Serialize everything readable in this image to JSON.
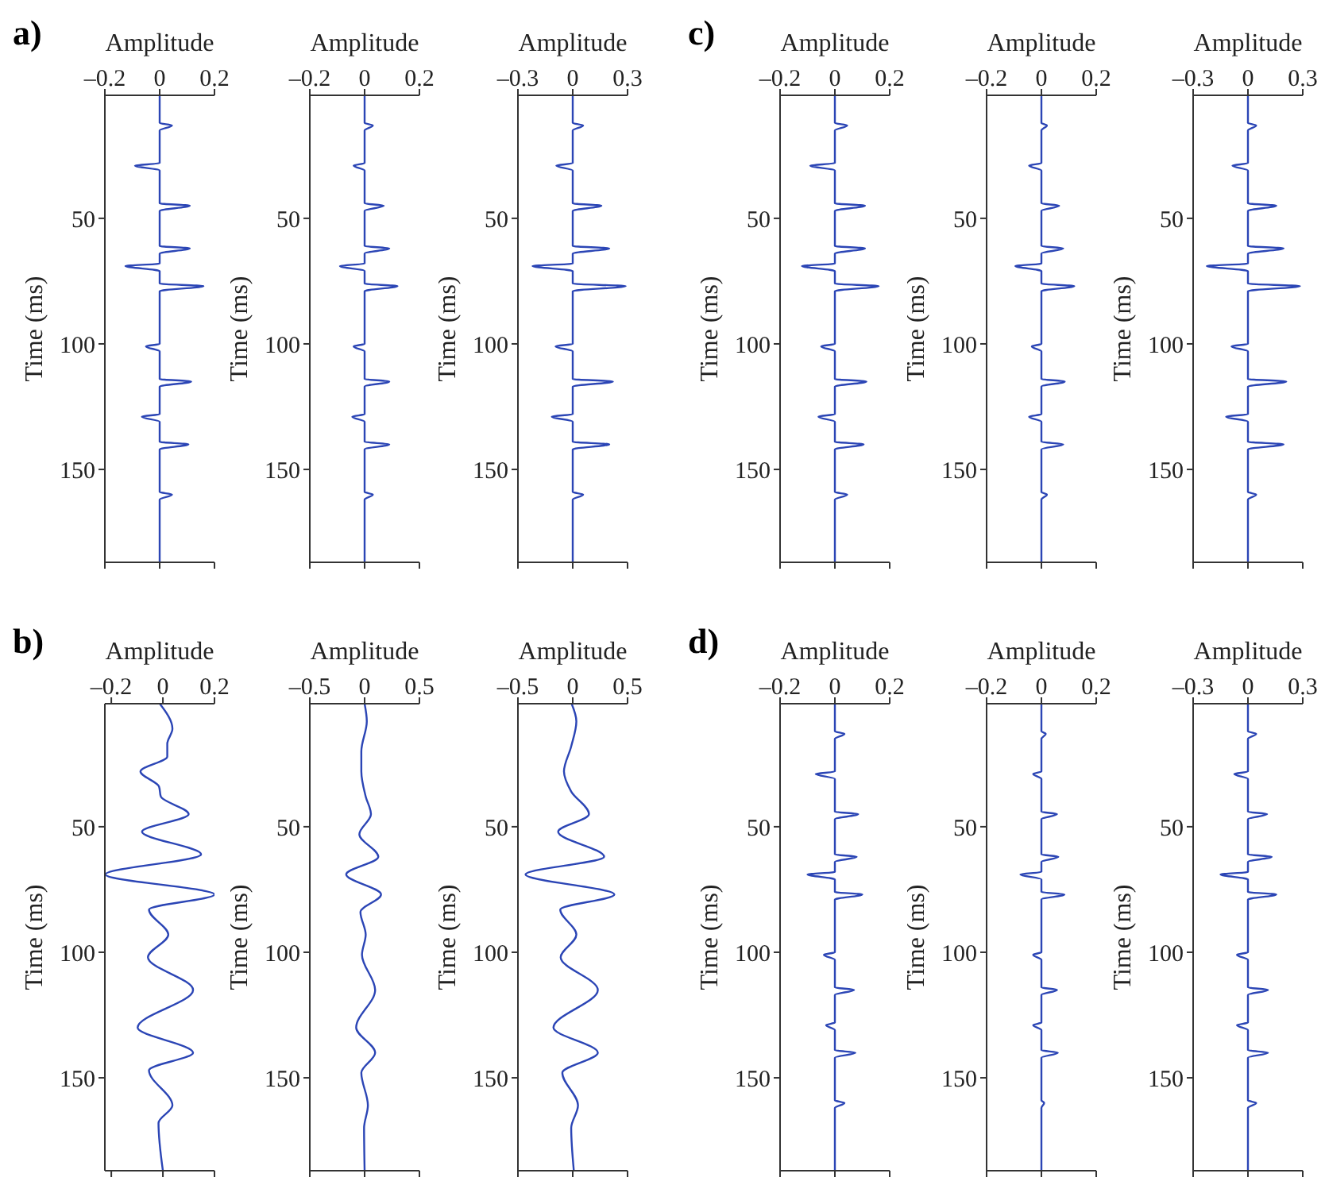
{
  "chart_data": [
    {
      "type": "line",
      "orientation": "horizontal",
      "annotations": [
        "a)"
      ],
      "xlabel": "Amplitude",
      "ylabel": "Time (ms)",
      "xlim": [
        -0.2,
        0.2
      ],
      "xticks": [
        {
          "value": -0.2,
          "label": "–0.2"
        },
        0,
        0.2
      ],
      "ylim": [
        187,
        1
      ],
      "yticks": [
        50,
        100,
        150
      ],
      "x": [
        1,
        12,
        13,
        15,
        28,
        29,
        31,
        44,
        45,
        47,
        61,
        62,
        64,
        68,
        69,
        71,
        76,
        77,
        79,
        100,
        101,
        103,
        114,
        115,
        117,
        128,
        129,
        131,
        139,
        140,
        142,
        159,
        160,
        162,
        187
      ],
      "series": [
        {
          "color": "#2b45b5",
          "values": [
            0,
            0,
            0.045,
            0,
            0,
            -0.09,
            0,
            0,
            0.11,
            0,
            0,
            0.11,
            0,
            0,
            -0.125,
            0,
            0,
            0.16,
            0,
            0,
            -0.05,
            0,
            0,
            0.115,
            0,
            0,
            -0.065,
            0,
            0,
            0.105,
            0,
            0,
            0.045,
            0,
            0
          ]
        }
      ]
    },
    {
      "type": "line",
      "orientation": "horizontal",
      "xlabel": "Amplitude",
      "ylabel": "Time (ms)",
      "xlim": [
        -0.2,
        0.2
      ],
      "xticks": [
        {
          "value": -0.2,
          "label": "–0.2"
        },
        0,
        0.2
      ],
      "ylim": [
        187,
        1
      ],
      "yticks": [
        50,
        100,
        150
      ],
      "x": [
        1,
        12,
        13,
        15,
        28,
        29,
        31,
        44,
        45,
        47,
        61,
        62,
        64,
        68,
        69,
        71,
        76,
        77,
        79,
        100,
        101,
        103,
        114,
        115,
        117,
        128,
        129,
        131,
        139,
        140,
        142,
        159,
        160,
        162,
        187
      ],
      "series": [
        {
          "color": "#2b45b5",
          "values": [
            0,
            0,
            0.03,
            0,
            0,
            -0.04,
            0,
            0,
            0.07,
            0,
            0,
            0.09,
            0,
            0,
            -0.09,
            0,
            0,
            0.12,
            0,
            0,
            -0.04,
            0,
            0,
            0.09,
            0,
            0,
            -0.045,
            0,
            0,
            0.09,
            0,
            0,
            0.03,
            0,
            0
          ]
        }
      ]
    },
    {
      "type": "line",
      "orientation": "horizontal",
      "xlabel": "Amplitude",
      "ylabel": "Time (ms)",
      "xlim": [
        -0.3,
        0.3
      ],
      "xticks": [
        {
          "value": -0.3,
          "label": "–0.3"
        },
        0,
        0.3
      ],
      "ylim": [
        187,
        1
      ],
      "yticks": [
        50,
        100,
        150
      ],
      "x": [
        1,
        12,
        13,
        15,
        28,
        29,
        31,
        44,
        45,
        47,
        61,
        62,
        64,
        68,
        69,
        71,
        76,
        77,
        79,
        100,
        101,
        103,
        114,
        115,
        117,
        128,
        129,
        131,
        139,
        140,
        142,
        159,
        160,
        162,
        187
      ],
      "series": [
        {
          "color": "#2b45b5",
          "values": [
            0,
            0,
            0.057,
            0,
            0,
            -0.09,
            0,
            0,
            0.157,
            0,
            0,
            0.2,
            0,
            0,
            -0.22,
            0,
            0,
            0.29,
            0,
            0,
            -0.094,
            0,
            0,
            0.22,
            0,
            0,
            -0.115,
            0,
            0,
            0.2,
            0,
            0,
            0.057,
            0,
            0
          ]
        }
      ]
    },
    {
      "type": "line",
      "orientation": "horizontal",
      "annotations": [
        "c)"
      ],
      "xlabel": "Amplitude",
      "ylabel": "Time (ms)",
      "xlim": [
        -0.2,
        0.2
      ],
      "xticks": [
        {
          "value": -0.2,
          "label": "–0.2"
        },
        0,
        0.2
      ],
      "ylim": [
        187,
        1
      ],
      "yticks": [
        50,
        100,
        150
      ],
      "x": [
        1,
        12,
        13,
        15,
        28,
        29,
        31,
        44,
        45,
        47,
        61,
        62,
        64,
        68,
        69,
        71,
        76,
        77,
        79,
        100,
        101,
        103,
        114,
        115,
        117,
        128,
        129,
        131,
        139,
        140,
        142,
        159,
        160,
        162,
        187
      ],
      "series": [
        {
          "color": "#2b45b5",
          "values": [
            0,
            0,
            0.045,
            0,
            0,
            -0.09,
            0,
            0,
            0.11,
            0,
            0,
            0.11,
            0,
            0,
            -0.12,
            0,
            0,
            0.16,
            0,
            0,
            -0.05,
            0,
            0,
            0.115,
            0,
            0,
            -0.06,
            0,
            0,
            0.105,
            0,
            0,
            0.045,
            0,
            0
          ]
        }
      ]
    },
    {
      "type": "line",
      "orientation": "horizontal",
      "xlabel": "Amplitude",
      "ylabel": "Time (ms)",
      "xlim": [
        -0.2,
        0.2
      ],
      "xticks": [
        {
          "value": -0.2,
          "label": "–0.2"
        },
        0,
        0.2
      ],
      "ylim": [
        187,
        1
      ],
      "yticks": [
        50,
        100,
        150
      ],
      "x": [
        1,
        12,
        13,
        15,
        28,
        29,
        31,
        44,
        45,
        47,
        61,
        62,
        64,
        68,
        69,
        71,
        76,
        77,
        79,
        100,
        101,
        103,
        114,
        115,
        117,
        128,
        129,
        131,
        139,
        140,
        142,
        159,
        160,
        162,
        187
      ],
      "series": [
        {
          "color": "#2b45b5",
          "values": [
            0,
            0,
            0.02,
            0,
            0,
            -0.045,
            0,
            0,
            0.065,
            0,
            0,
            0.08,
            0,
            0,
            -0.095,
            0,
            0,
            0.12,
            0,
            0,
            -0.035,
            0,
            0,
            0.085,
            0,
            0,
            -0.045,
            0,
            0,
            0.08,
            0,
            0,
            0.02,
            0,
            0
          ]
        }
      ]
    },
    {
      "type": "line",
      "orientation": "horizontal",
      "xlabel": "Amplitude",
      "ylabel": "Time (ms)",
      "xlim": [
        -0.3,
        0.3
      ],
      "xticks": [
        {
          "value": -0.3,
          "label": "–0.3"
        },
        0,
        0.3
      ],
      "ylim": [
        187,
        1
      ],
      "yticks": [
        50,
        100,
        150
      ],
      "x": [
        1,
        12,
        13,
        15,
        28,
        29,
        31,
        44,
        45,
        47,
        61,
        62,
        64,
        68,
        69,
        71,
        76,
        77,
        79,
        100,
        101,
        103,
        114,
        115,
        117,
        128,
        129,
        131,
        139,
        140,
        142,
        159,
        160,
        162,
        187
      ],
      "series": [
        {
          "color": "#2b45b5",
          "values": [
            0,
            0,
            0.045,
            0,
            0,
            -0.085,
            0,
            0,
            0.155,
            0,
            0,
            0.195,
            0,
            0,
            -0.225,
            0,
            0,
            0.285,
            0,
            0,
            -0.09,
            0,
            0,
            0.21,
            0,
            0,
            -0.12,
            0,
            0,
            0.195,
            0,
            0,
            0.045,
            0,
            0
          ]
        }
      ]
    },
    {
      "type": "line",
      "orientation": "horizontal",
      "annotations": [
        "b)"
      ],
      "xlabel": "Amplitude",
      "ylabel": "Time (ms)",
      "xlim": [
        -0.225,
        0.2
      ],
      "xticks": [
        {
          "value": -0.2,
          "label": "–0.2"
        },
        0,
        0.2
      ],
      "ylim": [
        187,
        1
      ],
      "yticks": [
        50,
        100,
        150
      ],
      "x": [
        1,
        11,
        17,
        22,
        28,
        34,
        38,
        45,
        52,
        61,
        69,
        77,
        83,
        93,
        102,
        115,
        130,
        140,
        147,
        161,
        168,
        187
      ],
      "series": [
        {
          "color": "#2b45b5",
          "values": [
            -0.012,
            0.037,
            0.017,
            0.017,
            -0.087,
            -0.015,
            -0.008,
            0.1,
            -0.081,
            0.148,
            -0.223,
            0.2,
            -0.054,
            0.021,
            -0.058,
            0.117,
            -0.098,
            0.117,
            -0.054,
            0.037,
            -0.017,
            0
          ]
        }
      ]
    },
    {
      "type": "line",
      "orientation": "horizontal",
      "xlabel": "Amplitude",
      "ylabel": "Time (ms)",
      "xlim": [
        -0.5,
        0.5
      ],
      "xticks": [
        {
          "value": -0.5,
          "label": "–0.5"
        },
        0,
        0.5
      ],
      "ylim": [
        187,
        1
      ],
      "yticks": [
        50,
        100,
        150
      ],
      "x": [
        1,
        8,
        20,
        28,
        38,
        45,
        53,
        62,
        69,
        77,
        84,
        93,
        101,
        115,
        130,
        140,
        148,
        161,
        170,
        187
      ],
      "series": [
        {
          "color": "#2b45b5",
          "values": [
            0,
            0.02,
            -0.03,
            -0.03,
            0.01,
            0.058,
            -0.048,
            0.125,
            -0.168,
            0.15,
            -0.038,
            0.01,
            -0.024,
            0.096,
            -0.077,
            0.096,
            -0.03,
            0.03,
            -0.005,
            0
          ]
        }
      ]
    },
    {
      "type": "line",
      "orientation": "horizontal",
      "xlabel": "Amplitude",
      "ylabel": "Time (ms)",
      "xlim": [
        -0.5,
        0.5
      ],
      "xticks": [
        {
          "value": -0.5,
          "label": "–0.5"
        },
        0,
        0.5
      ],
      "ylim": [
        187,
        1
      ],
      "yticks": [
        50,
        100,
        150
      ],
      "x": [
        1,
        8,
        18,
        28,
        36,
        45,
        52,
        62,
        69,
        77,
        83,
        93,
        102,
        115,
        130,
        140,
        148,
        161,
        170,
        187
      ],
      "series": [
        {
          "color": "#2b45b5",
          "values": [
            -0.01,
            0.033,
            -0.014,
            -0.08,
            -0.014,
            0.148,
            -0.133,
            0.286,
            -0.43,
            0.38,
            -0.114,
            0.033,
            -0.11,
            0.229,
            -0.176,
            0.229,
            -0.095,
            0.048,
            -0.014,
            0.01
          ]
        }
      ]
    },
    {
      "type": "line",
      "orientation": "horizontal",
      "annotations": [
        "d)"
      ],
      "xlabel": "Amplitude",
      "ylabel": "Time (ms)",
      "xlim": [
        -0.2,
        0.2
      ],
      "xticks": [
        {
          "value": -0.2,
          "label": "–0.2"
        },
        0,
        0.2
      ],
      "ylim": [
        187,
        1
      ],
      "yticks": [
        50,
        100,
        150
      ],
      "x": [
        1,
        12,
        13,
        15,
        28,
        29,
        31,
        44,
        45,
        47,
        61,
        62,
        64,
        68,
        69,
        71,
        76,
        77,
        79,
        100,
        101,
        103,
        114,
        115,
        117,
        128,
        129,
        131,
        139,
        140,
        142,
        159,
        160,
        162,
        187
      ],
      "series": [
        {
          "color": "#2b45b5",
          "values": [
            0,
            0,
            0.035,
            0,
            0,
            -0.07,
            0,
            0,
            0.085,
            0,
            0,
            0.08,
            0,
            0,
            -0.1,
            0,
            0,
            0.1,
            0,
            0,
            -0.04,
            0,
            0,
            0.07,
            0,
            0,
            -0.032,
            0,
            0,
            0.075,
            0,
            0,
            0.035,
            0,
            0
          ]
        }
      ]
    },
    {
      "type": "line",
      "orientation": "horizontal",
      "xlabel": "Amplitude",
      "ylabel": "Time (ms)",
      "xlim": [
        -0.2,
        0.2
      ],
      "xticks": [
        {
          "value": -0.2,
          "label": "–0.2"
        },
        0,
        0.2
      ],
      "ylim": [
        187,
        1
      ],
      "yticks": [
        50,
        100,
        150
      ],
      "x": [
        1,
        12,
        13,
        15,
        28,
        29,
        31,
        44,
        45,
        47,
        61,
        62,
        64,
        68,
        69,
        71,
        76,
        77,
        79,
        100,
        101,
        103,
        114,
        115,
        117,
        128,
        129,
        131,
        139,
        140,
        142,
        159,
        160,
        162,
        187
      ],
      "series": [
        {
          "color": "#2b45b5",
          "values": [
            0,
            0,
            0.016,
            0,
            0,
            -0.03,
            0,
            0,
            0.057,
            0,
            0,
            0.062,
            0,
            0,
            -0.077,
            0,
            0,
            0.084,
            0,
            0,
            -0.03,
            0,
            0,
            0.057,
            0,
            0,
            -0.03,
            0,
            0,
            0.06,
            0,
            0,
            0.01,
            0,
            0
          ]
        }
      ]
    },
    {
      "type": "line",
      "orientation": "horizontal",
      "xlabel": "Amplitude",
      "ylabel": "Time (ms)",
      "xlim": [
        -0.3,
        0.3
      ],
      "xticks": [
        {
          "value": -0.3,
          "label": "–0.3"
        },
        0,
        0.3
      ],
      "ylim": [
        187,
        1
      ],
      "yticks": [
        50,
        100,
        150
      ],
      "x": [
        1,
        12,
        13,
        15,
        28,
        29,
        31,
        44,
        45,
        47,
        61,
        62,
        64,
        68,
        69,
        71,
        76,
        77,
        79,
        100,
        101,
        103,
        114,
        115,
        117,
        128,
        129,
        131,
        139,
        140,
        142,
        159,
        160,
        162,
        187
      ],
      "series": [
        {
          "color": "#2b45b5",
          "values": [
            0,
            0,
            0.045,
            0,
            0,
            -0.075,
            0,
            0,
            0.105,
            0,
            0,
            0.13,
            0,
            0,
            -0.15,
            0,
            0,
            0.155,
            0,
            0,
            -0.06,
            0,
            0,
            0.11,
            0,
            0,
            -0.06,
            0,
            0,
            0.11,
            0,
            0,
            0.045,
            0,
            0
          ]
        }
      ]
    }
  ]
}
